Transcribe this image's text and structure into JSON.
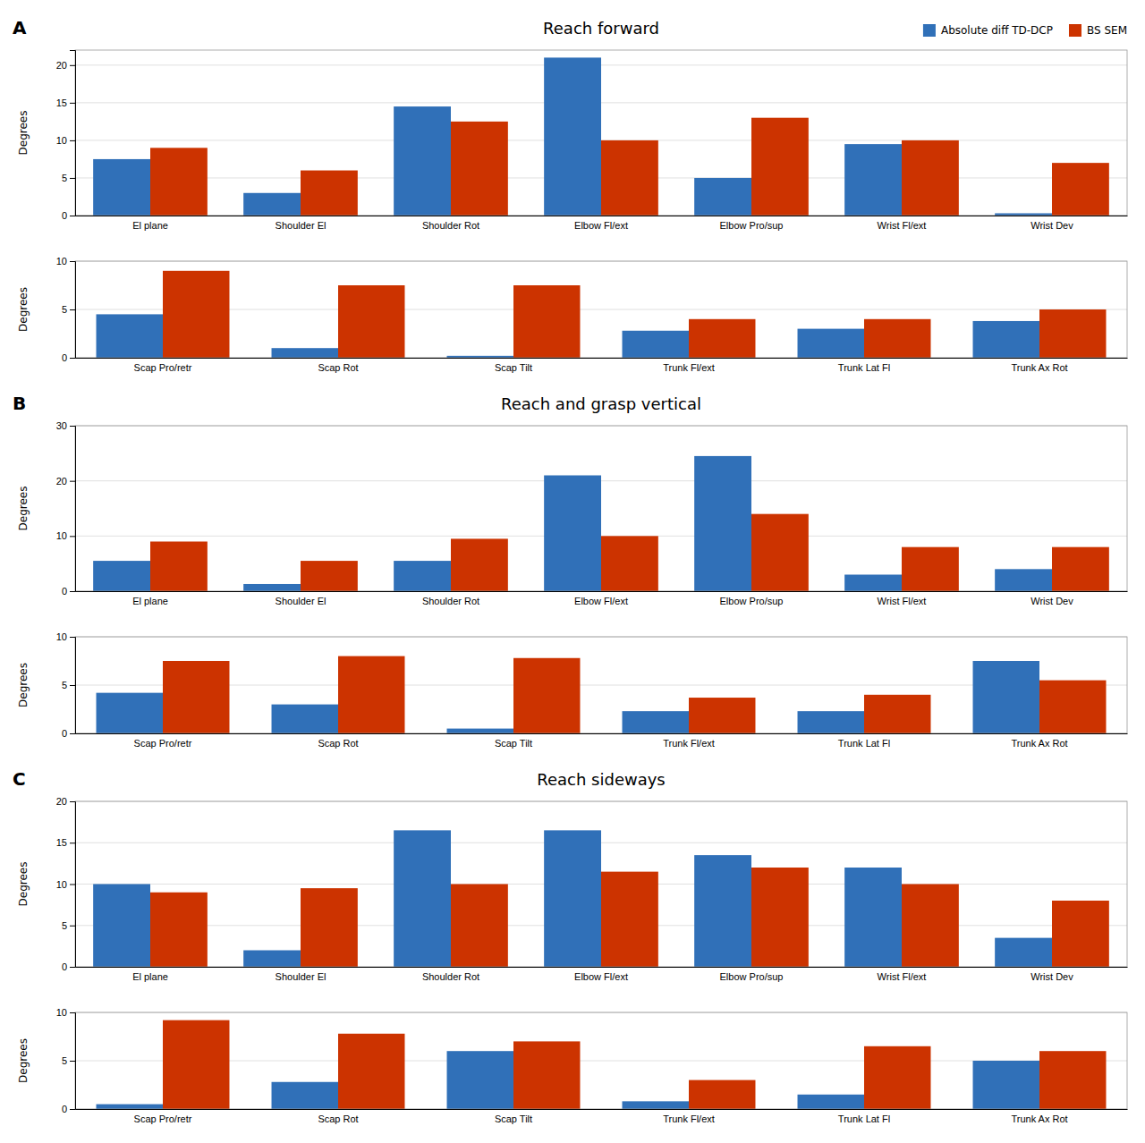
{
  "chart_data": [
    {
      "type": "bar",
      "title": "Reach forward",
      "annotations": [
        "A"
      ],
      "ylabel": "Degrees",
      "categories": [
        "El plane",
        "Shoulder El",
        "Shoulder Rot",
        "Elbow Fl/ext",
        "Elbow Pro/sup",
        "Wrist Fl/ext",
        "Wrist Dev"
      ],
      "series": [
        {
          "name": "Absolute diff TD-DCP",
          "color": "#3070B8",
          "values": [
            7.5,
            3.0,
            14.5,
            21.0,
            5.0,
            9.5,
            0.3
          ]
        },
        {
          "name": "BS SEM",
          "color": "#CC3300",
          "values": [
            9.0,
            6.0,
            12.5,
            10.0,
            13.0,
            10.0,
            7.0
          ]
        }
      ],
      "ylim": [
        0,
        22
      ],
      "yticks": [
        0,
        5,
        10,
        15,
        20
      ],
      "grid": true,
      "legend": "upper right"
    },
    {
      "type": "bar",
      "ylabel": "Degrees",
      "categories": [
        "Scap Pro/retr",
        "Scap Rot",
        "Scap Tilt",
        "Trunk Fl/ext",
        "Trunk Lat Fl",
        "Trunk Ax Rot"
      ],
      "series": [
        {
          "color": "#3070B8",
          "values": [
            4.5,
            1.0,
            0.2,
            2.8,
            3.0,
            3.8
          ]
        },
        {
          "color": "#CC3300",
          "values": [
            9.0,
            7.5,
            7.5,
            4.0,
            4.0,
            5.0
          ]
        }
      ],
      "ylim": [
        0,
        10
      ],
      "yticks": [
        0,
        5,
        10
      ],
      "grid": true
    },
    {
      "type": "bar",
      "title": "Reach and grasp vertical",
      "annotations": [
        "B"
      ],
      "ylabel": "Degrees",
      "categories": [
        "El plane",
        "Shoulder El",
        "Shoulder Rot",
        "Elbow Fl/ext",
        "Elbow Pro/sup",
        "Wrist Fl/ext",
        "Wrist Dev"
      ],
      "series": [
        {
          "color": "#3070B8",
          "values": [
            5.5,
            1.3,
            5.5,
            21.0,
            24.5,
            3.0,
            4.0
          ]
        },
        {
          "color": "#CC3300",
          "values": [
            9.0,
            5.5,
            9.5,
            10.0,
            14.0,
            8.0,
            8.0
          ]
        }
      ],
      "ylim": [
        0,
        30
      ],
      "yticks": [
        0,
        10,
        20,
        30
      ],
      "grid": true
    },
    {
      "type": "bar",
      "ylabel": "Degrees",
      "categories": [
        "Scap Pro/retr",
        "Scap Rot",
        "Scap Tilt",
        "Trunk Fl/ext",
        "Trunk Lat Fl",
        "Trunk Ax Rot"
      ],
      "series": [
        {
          "color": "#3070B8",
          "values": [
            4.2,
            3.0,
            0.5,
            2.3,
            2.3,
            7.5
          ]
        },
        {
          "color": "#CC3300",
          "values": [
            7.5,
            8.0,
            7.8,
            3.7,
            4.0,
            5.5
          ]
        }
      ],
      "ylim": [
        0,
        10
      ],
      "yticks": [
        0,
        5,
        10
      ],
      "grid": true
    },
    {
      "type": "bar",
      "title": "Reach sideways",
      "annotations": [
        "C"
      ],
      "ylabel": "Degrees",
      "categories": [
        "El plane",
        "Shoulder El",
        "Shoulder Rot",
        "Elbow Fl/ext",
        "Elbow Pro/sup",
        "Wrist Fl/ext",
        "Wrist Dev"
      ],
      "series": [
        {
          "color": "#3070B8",
          "values": [
            10.0,
            2.0,
            16.5,
            16.5,
            13.5,
            12.0,
            3.5
          ]
        },
        {
          "color": "#CC3300",
          "values": [
            9.0,
            9.5,
            10.0,
            11.5,
            12.0,
            10.0,
            8.0
          ]
        }
      ],
      "ylim": [
        0,
        20
      ],
      "yticks": [
        0,
        5,
        10,
        15,
        20
      ],
      "grid": true
    },
    {
      "type": "bar",
      "ylabel": "Degrees",
      "categories": [
        "Scap Pro/retr",
        "Scap Rot",
        "Scap Tilt",
        "Trunk Fl/ext",
        "Trunk Lat Fl",
        "Trunk Ax Rot"
      ],
      "series": [
        {
          "color": "#3070B8",
          "values": [
            0.5,
            2.8,
            6.0,
            0.8,
            1.5,
            5.0
          ]
        },
        {
          "color": "#CC3300",
          "values": [
            9.2,
            7.8,
            7.0,
            3.0,
            6.5,
            6.0
          ]
        }
      ],
      "ylim": [
        0,
        10
      ],
      "yticks": [
        0,
        5,
        10
      ],
      "grid": true
    }
  ]
}
